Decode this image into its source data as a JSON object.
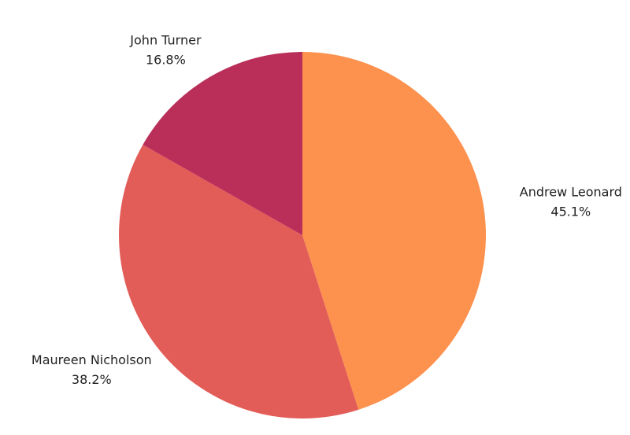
{
  "chart_data": {
    "type": "pie",
    "categories": [
      "Andrew Leonard",
      "Maureen Nicholson",
      "John Turner"
    ],
    "values": [
      45.1,
      38.2,
      16.8
    ],
    "value_labels": [
      "45.1%",
      "38.2%",
      "16.8%"
    ],
    "colors": [
      "#fd914e",
      "#e25c58",
      "#ba2f5a"
    ]
  }
}
